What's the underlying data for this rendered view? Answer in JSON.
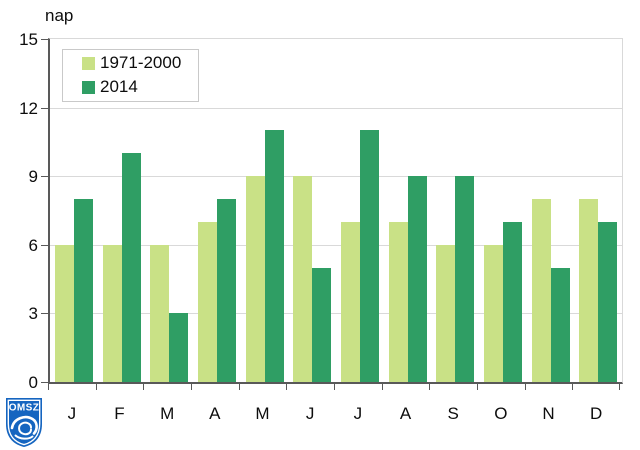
{
  "logo": {
    "text": "OMSZ"
  },
  "colors": {
    "axis": "#595959",
    "grid": "#d9d9d9",
    "series_1971_2000": "#c9e186",
    "series_2014": "#2f9e64",
    "logo_blue": "#1565c0",
    "text": "#0d0d0d"
  },
  "chart_data": {
    "type": "bar",
    "categories": [
      "J",
      "F",
      "M",
      "A",
      "M",
      "J",
      "J",
      "A",
      "S",
      "O",
      "N",
      "D"
    ],
    "series": [
      {
        "name": "1971-2000",
        "color": "#c9e186",
        "values": [
          6,
          6,
          6,
          7,
          9,
          9,
          7,
          7,
          6,
          6,
          8,
          8
        ]
      },
      {
        "name": "2014",
        "color": "#2f9e64",
        "values": [
          8,
          10,
          3,
          8,
          11,
          5,
          11,
          9,
          9,
          7,
          5,
          7
        ]
      }
    ],
    "title": "",
    "xlabel": "",
    "ylabel": "nap",
    "ylim": [
      0,
      15
    ],
    "yticks": [
      0,
      3,
      6,
      9,
      12,
      15
    ],
    "grid": true,
    "legend_position": "top-left"
  }
}
